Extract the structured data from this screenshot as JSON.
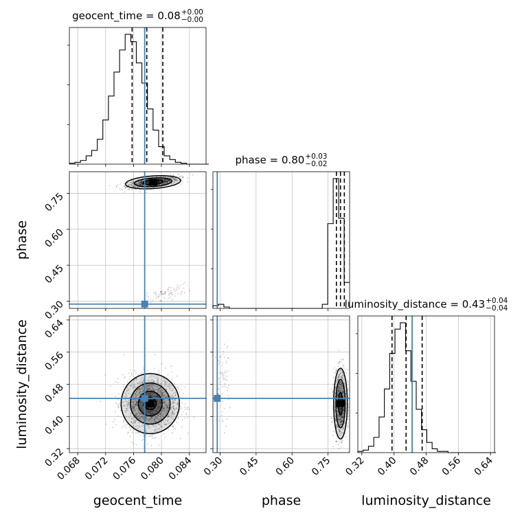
{
  "colors": {
    "truth": "#4682b4",
    "hist": "#000000",
    "grid": "#b0b0b0",
    "sample": "#000000"
  },
  "chart_data": {
    "type": "corner",
    "parameters": [
      "geocent_time",
      "phase",
      "luminosity_distance"
    ],
    "truths": {
      "geocent_time": 0.0776,
      "phase": 0.288,
      "luminosity_distance": 0.445
    },
    "titles": {
      "geocent_time": {
        "prefix": "geocent_time = 0.08",
        "sup": "+0.00",
        "sub": "−0.00"
      },
      "phase": {
        "prefix": "phase = 0.80",
        "sup": "+0.03",
        "sub": "−0.02"
      },
      "luminosity_distance": {
        "prefix": "luminosity_distance = 0.43",
        "sup": "+0.04",
        "sub": "−0.04"
      }
    },
    "axes": {
      "geocent_time": {
        "range": [
          0.0668,
          0.0864
        ],
        "ticks": [
          0.068,
          0.072,
          0.076,
          0.08,
          0.084
        ],
        "tick_labels": [
          "0.068",
          "0.072",
          "0.076",
          "0.080",
          "0.084"
        ],
        "label": "geocent_time"
      },
      "phase": {
        "range": [
          0.27,
          0.84
        ],
        "ticks": [
          0.3,
          0.45,
          0.6,
          0.75
        ],
        "tick_labels": [
          "0.30",
          "0.45",
          "0.60",
          "0.75"
        ],
        "label": "phase"
      },
      "luminosity_distance": {
        "range": [
          0.31,
          0.65
        ],
        "ticks": [
          0.32,
          0.4,
          0.48,
          0.56,
          0.64
        ],
        "tick_labels": [
          "0.32",
          "0.40",
          "0.48",
          "0.56",
          "0.64"
        ],
        "label": "luminosity_distance"
      }
    },
    "quantiles": {
      "geocent_time": [
        0.0758,
        0.0779,
        0.0802
      ],
      "phase": [
        0.785,
        0.802,
        0.818
      ],
      "luminosity_distance": [
        0.395,
        0.43,
        0.47
      ]
    },
    "histograms": {
      "geocent_time": {
        "start": 0.0668,
        "step": 0.0008,
        "counts": [
          1,
          2,
          4,
          9,
          15,
          27,
          48,
          74,
          100,
          124,
          141,
          133,
          110,
          88,
          60,
          37,
          19,
          9,
          5,
          2,
          1,
          0,
          0,
          0,
          0
        ]
      },
      "phase": {
        "start": 0.27,
        "step": 0.0228,
        "counts": [
          2,
          3,
          1,
          0,
          0,
          0,
          0,
          0,
          0,
          0,
          0,
          0,
          0,
          0,
          0,
          0,
          0,
          0,
          0,
          0,
          3,
          62,
          95,
          66,
          19
        ]
      },
      "luminosity_distance": {
        "start": 0.31,
        "step": 0.0132,
        "counts": [
          1,
          2,
          5,
          12,
          28,
          50,
          78,
          97,
          102,
          80,
          56,
          34,
          18,
          8,
          3,
          1,
          1,
          0,
          0,
          0,
          0,
          0,
          0,
          0,
          0,
          0
        ]
      }
    },
    "grid": true
  }
}
